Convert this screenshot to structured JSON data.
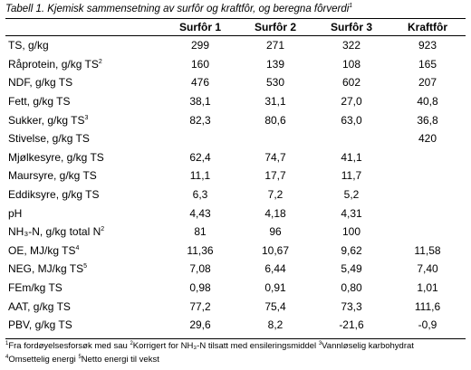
{
  "caption": "Tabell 1. Kjemisk sammensetning av surfôr og kraftfôr, og beregna fôrverdi",
  "caption_sup": "1",
  "columns": [
    "",
    "Surfôr 1",
    "Surfôr 2",
    "Surfôr 3",
    "Kraftfôr"
  ],
  "rows": [
    {
      "label": "TS, g/kg",
      "sup": "",
      "values": [
        "299",
        "271",
        "322",
        "923"
      ]
    },
    {
      "label": "Råprotein, g/kg TS",
      "sup": "2",
      "values": [
        "160",
        "139",
        "108",
        "165"
      ]
    },
    {
      "label": "NDF, g/kg TS",
      "sup": "",
      "values": [
        "476",
        "530",
        "602",
        "207"
      ]
    },
    {
      "label": "Fett, g/kg TS",
      "sup": "",
      "values": [
        "38,1",
        "31,1",
        "27,0",
        "40,8"
      ]
    },
    {
      "label": "Sukker, g/kg TS",
      "sup": "3",
      "values": [
        "82,3",
        "80,6",
        "63,0",
        "36,8"
      ]
    },
    {
      "label": "Stivelse, g/kg TS",
      "sup": "",
      "values": [
        "",
        "",
        "",
        "420"
      ]
    },
    {
      "label": "Mjølkesyre, g/kg TS",
      "sup": "",
      "values": [
        "62,4",
        "74,7",
        "41,1",
        ""
      ]
    },
    {
      "label": "Maursyre, g/kg TS",
      "sup": "",
      "values": [
        "11,1",
        "17,7",
        "11,7",
        ""
      ]
    },
    {
      "label": "Eddiksyre, g/kg TS",
      "sup": "",
      "values": [
        "6,3",
        "7,2",
        "5,2",
        ""
      ]
    },
    {
      "label": "pH",
      "sup": "",
      "values": [
        "4,43",
        "4,18",
        "4,31",
        ""
      ]
    },
    {
      "label": "NH₃-N, g/kg total N",
      "sup": "2",
      "values": [
        "81",
        "96",
        "100",
        ""
      ]
    },
    {
      "label": "OE, MJ/kg TS",
      "sup": "4",
      "values": [
        "11,36",
        "10,67",
        "9,62",
        "11,58"
      ]
    },
    {
      "label": "NEG, MJ/kg TS",
      "sup": "5",
      "values": [
        "7,08",
        "6,44",
        "5,49",
        "7,40"
      ]
    },
    {
      "label": "FEm/kg TS",
      "sup": "",
      "values": [
        "0,98",
        "0,91",
        "0,80",
        "1,01"
      ]
    },
    {
      "label": "AAT, g/kg TS",
      "sup": "",
      "values": [
        "77,2",
        "75,4",
        "73,3",
        "111,6"
      ]
    },
    {
      "label": "PBV, g/kg TS",
      "sup": "",
      "values": [
        "29,6",
        "8,2",
        "-21,6",
        "-0,9"
      ]
    }
  ],
  "footnotes": {
    "f1_num": "1",
    "f1": "Fra fordøyelsesforsøk med sau",
    "f2_num": "2",
    "f2": "Korrigert for NH₃-N tilsatt med ensileringsmiddel",
    "f3_num": "3",
    "f3": "Vannløselig karbohydrat",
    "f4_num": "4",
    "f4": "Omsettelig energi",
    "f5_num": "5",
    "f5": "Netto energi til vekst"
  }
}
